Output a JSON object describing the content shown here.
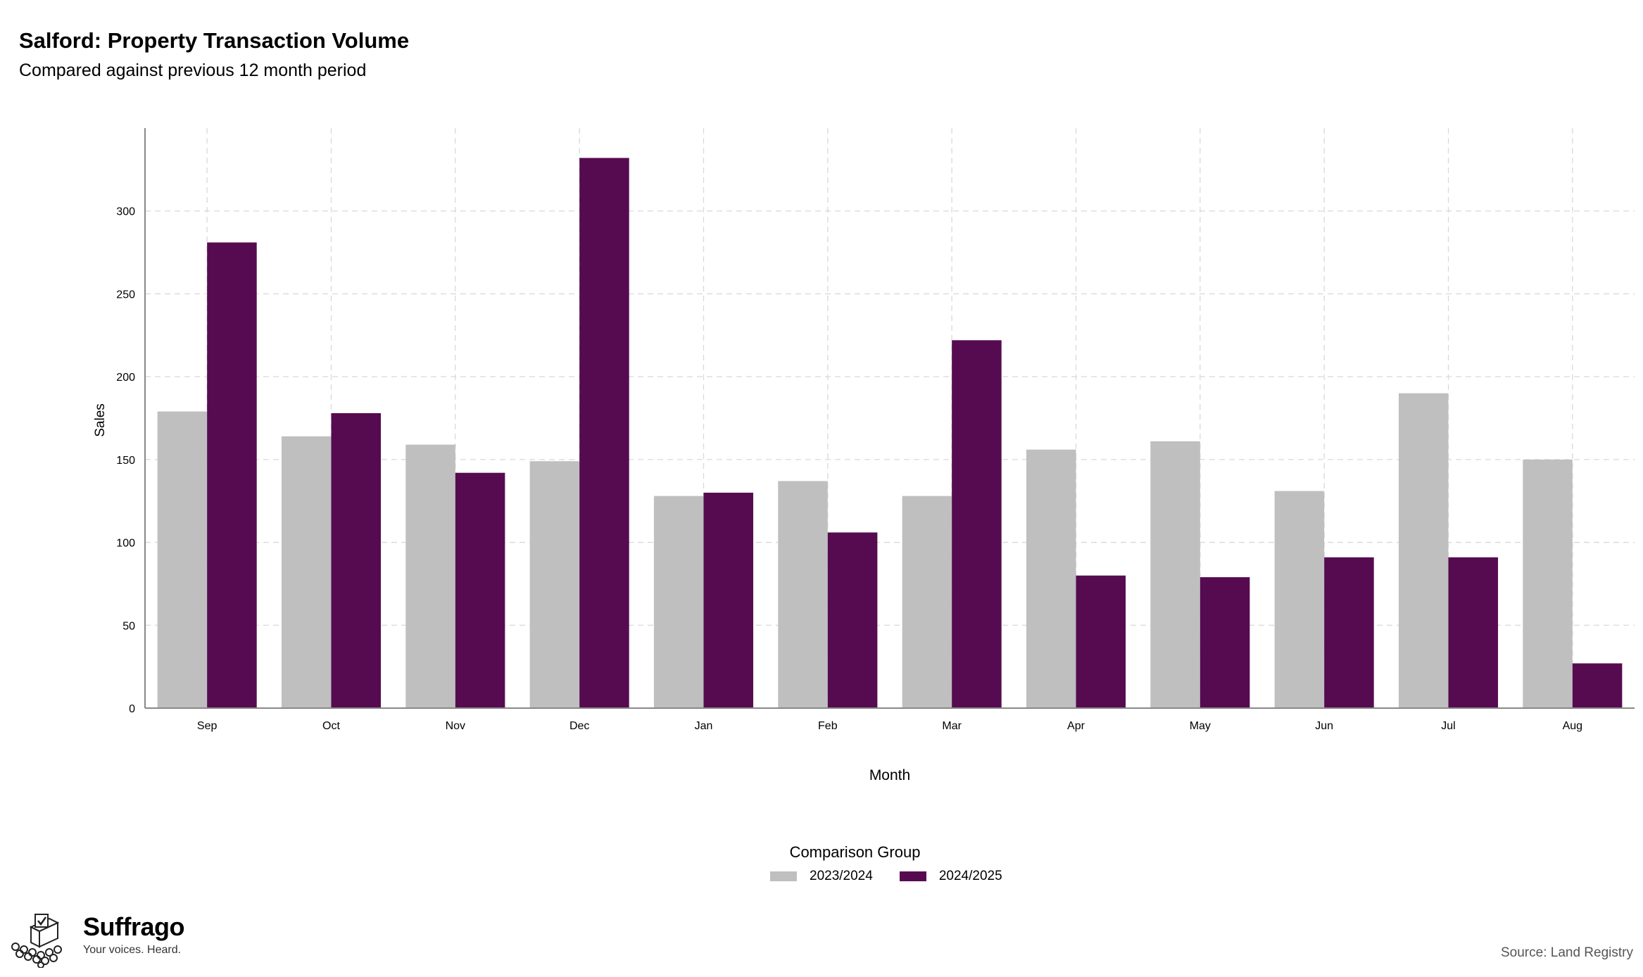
{
  "title": "Salford: Property Transaction Volume",
  "subtitle": "Compared against previous 12 month period",
  "legend": {
    "title": "Comparison Group",
    "items": [
      {
        "label": "2023/2024",
        "color": "#bfbfbf"
      },
      {
        "label": "2024/2025",
        "color": "#560b51"
      }
    ]
  },
  "brand": {
    "name": "Suffrago",
    "tagline": "Your voices. Heard.",
    "icon": "ballot-box-icon"
  },
  "source": "Source: Land Registry",
  "chart_data": {
    "type": "bar",
    "xlabel": "Month",
    "ylabel": "Sales",
    "ylim": [
      0,
      350
    ],
    "yticks": [
      0,
      50,
      100,
      150,
      200,
      250,
      300
    ],
    "grid": true,
    "legend_position": "bottom",
    "categories": [
      "Sep",
      "Oct",
      "Nov",
      "Dec",
      "Jan",
      "Feb",
      "Mar",
      "Apr",
      "May",
      "Jun",
      "Jul",
      "Aug"
    ],
    "series": [
      {
        "name": "2023/2024",
        "color": "#bfbfbf",
        "values": [
          179,
          164,
          159,
          149,
          128,
          137,
          128,
          156,
          161,
          131,
          190,
          150
        ]
      },
      {
        "name": "2024/2025",
        "color": "#560b51",
        "values": [
          281,
          178,
          142,
          332,
          130,
          106,
          222,
          80,
          79,
          91,
          91,
          27
        ]
      }
    ]
  }
}
